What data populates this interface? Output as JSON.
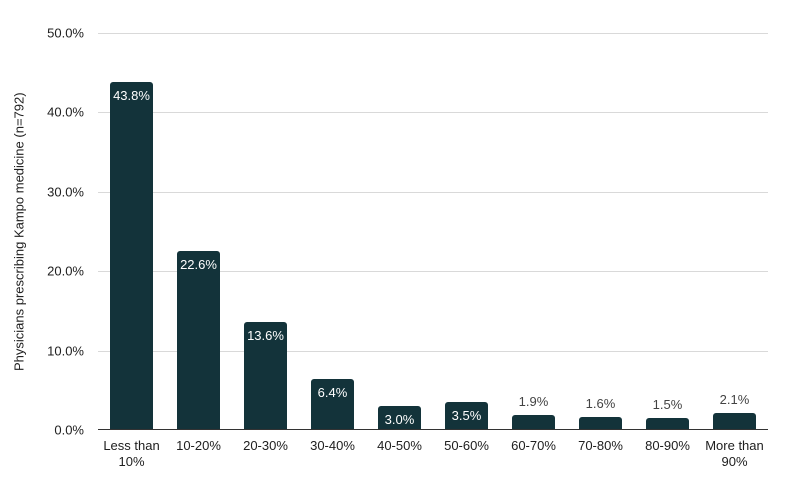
{
  "chart_data": {
    "type": "bar",
    "categories": [
      "Less than 10%",
      "10-20%",
      "20-30%",
      "30-40%",
      "40-50%",
      "50-60%",
      "60-70%",
      "70-80%",
      "80-90%",
      "More than 90%"
    ],
    "values": [
      43.8,
      22.6,
      13.6,
      6.4,
      3.0,
      3.5,
      1.9,
      1.6,
      1.5,
      2.1
    ],
    "value_labels": [
      "43.8%",
      "22.6%",
      "13.6%",
      "6.4%",
      "3.0%",
      "3.5%",
      "1.9%",
      "1.6%",
      "1.5%",
      "2.1%"
    ],
    "xlabel": "",
    "ylabel": "Physicians prescribing Kampo medicine (n=792)",
    "y_ticks": [
      "0.0%",
      "10.0%",
      "20.0%",
      "30.0%",
      "40.0%",
      "50.0%"
    ],
    "ylim": [
      0,
      50
    ],
    "grid": true,
    "legend": false,
    "colors": {
      "bar": "#13333a",
      "gridline": "#d9d9d9",
      "axis_line": "#333333",
      "tick_text": "#202020",
      "inside_value_label": "#ffffff",
      "outside_value_label": "#434343"
    }
  }
}
